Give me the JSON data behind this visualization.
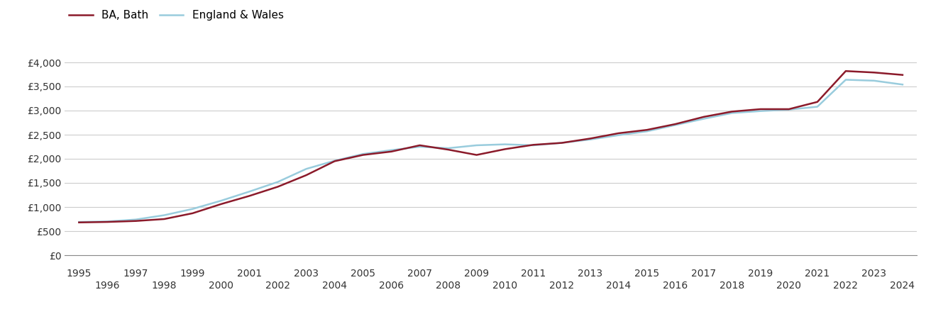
{
  "ba_bath_years": [
    1995,
    1996,
    1997,
    1998,
    1999,
    2000,
    2001,
    2002,
    2003,
    2004,
    2005,
    2006,
    2007,
    2008,
    2009,
    2010,
    2011,
    2012,
    2013,
    2014,
    2015,
    2016,
    2017,
    2018,
    2019,
    2020,
    2021,
    2022,
    2023,
    2024
  ],
  "ba_bath_values": [
    680,
    690,
    710,
    750,
    870,
    1060,
    1230,
    1420,
    1660,
    1950,
    2080,
    2150,
    2280,
    2190,
    2080,
    2200,
    2290,
    2330,
    2420,
    2530,
    2600,
    2720,
    2870,
    2980,
    3030,
    3030,
    3180,
    3820,
    3790,
    3740
  ],
  "eng_wales_years": [
    1995,
    1996,
    1997,
    1998,
    1999,
    2000,
    2001,
    2002,
    2003,
    2004,
    2005,
    2006,
    2007,
    2008,
    2009,
    2010,
    2011,
    2012,
    2013,
    2014,
    2015,
    2016,
    2017,
    2018,
    2019,
    2020,
    2021,
    2022,
    2023,
    2024
  ],
  "eng_wales_values": [
    690,
    700,
    740,
    830,
    960,
    1130,
    1320,
    1520,
    1790,
    1960,
    2100,
    2180,
    2250,
    2220,
    2280,
    2300,
    2280,
    2330,
    2400,
    2490,
    2570,
    2700,
    2830,
    2950,
    2990,
    3020,
    3080,
    3640,
    3620,
    3540
  ],
  "ba_bath_color": "#8B1A2A",
  "eng_wales_color": "#99CCDD",
  "ba_bath_label": "BA, Bath",
  "eng_wales_label": "England & Wales",
  "ylim": [
    0,
    4500
  ],
  "yticks": [
    0,
    500,
    1000,
    1500,
    2000,
    2500,
    3000,
    3500,
    4000
  ],
  "ytick_labels": [
    "£0",
    "£500",
    "£1,000",
    "£1,500",
    "£2,000",
    "£2,500",
    "£3,000",
    "£3,500",
    "£4,000"
  ],
  "xlim_min": 1994.5,
  "xlim_max": 2024.5,
  "xticks_odd": [
    1995,
    1997,
    1999,
    2001,
    2003,
    2005,
    2007,
    2009,
    2011,
    2013,
    2015,
    2017,
    2019,
    2021,
    2023
  ],
  "xticks_even": [
    1996,
    1998,
    2000,
    2002,
    2004,
    2006,
    2008,
    2010,
    2012,
    2014,
    2016,
    2018,
    2020,
    2022,
    2024
  ],
  "background_color": "#ffffff",
  "grid_color": "#cccccc",
  "line_width": 1.8,
  "legend_fontsize": 11,
  "tick_fontsize": 10
}
